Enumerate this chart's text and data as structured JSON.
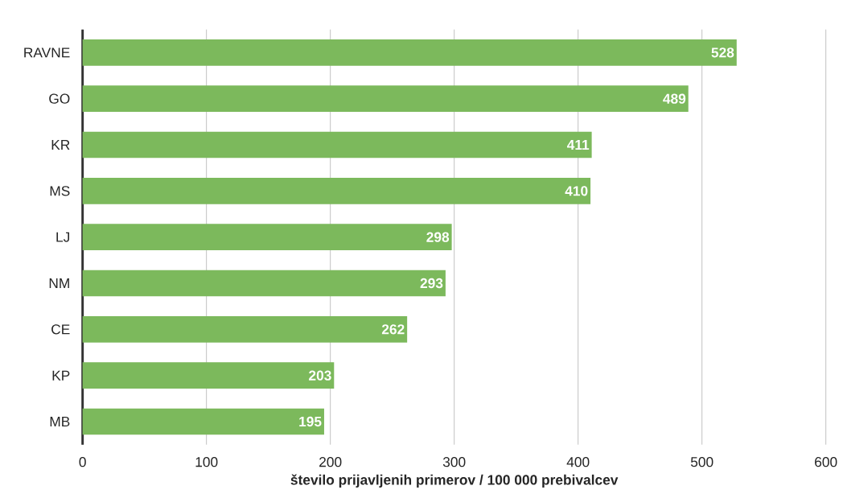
{
  "chart_data": {
    "type": "bar",
    "orientation": "horizontal",
    "categories": [
      "RAVNE",
      "GO",
      "KR",
      "MS",
      "LJ",
      "NM",
      "CE",
      "KP",
      "MB"
    ],
    "values": [
      528,
      489,
      411,
      410,
      298,
      293,
      262,
      203,
      195
    ],
    "color": "#7cb95c",
    "xlabel": "število prijavljenih primerov / 100 000 prebivalcev",
    "xlim": [
      0,
      600
    ],
    "xticks": [
      0,
      100,
      200,
      300,
      400,
      500,
      600
    ],
    "grid": "x",
    "data_labels": true
  }
}
